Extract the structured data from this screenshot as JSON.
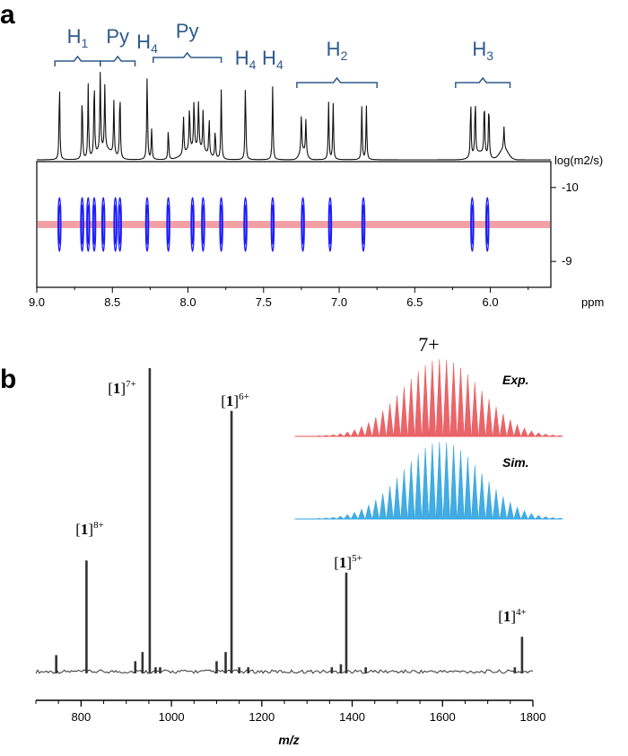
{
  "figure": {
    "panel_a_letter": "a",
    "panel_b_letter": "b"
  },
  "chart_data": [
    {
      "type": "line",
      "panel": "a",
      "subtype": "1H NMR spectrum with DOSY map",
      "x_axis": {
        "range": [
          9.0,
          5.6
        ],
        "ticks": [
          "9.0",
          "8.5",
          "8.0",
          "7.5",
          "7.0",
          "6.5",
          "6.0"
        ],
        "unit": "ppm",
        "reversed": true
      },
      "y_axis": {
        "label": "log(m2/s)",
        "ticks": [
          "-10",
          "-9"
        ]
      },
      "assignments": [
        {
          "name": "H",
          "sub": "1",
          "range": [
            8.88,
            8.58
          ]
        },
        {
          "name": "Py",
          "range": [
            8.58,
            8.35
          ]
        },
        {
          "name": "H",
          "sub": "4",
          "point": 8.27
        },
        {
          "name": "Py",
          "range": [
            8.23,
            7.78
          ]
        },
        {
          "name": "H",
          "sub": "4",
          "point": 7.62
        },
        {
          "name": "H",
          "sub": "4",
          "point": 7.44
        },
        {
          "name": "H",
          "sub": "2",
          "range": [
            7.28,
            6.75
          ]
        },
        {
          "name": "H",
          "sub": "3",
          "range": [
            6.23,
            5.87
          ]
        }
      ],
      "peaks_ppm": [
        {
          "x": 8.85,
          "h": 0.85
        },
        {
          "x": 8.7,
          "h": 0.74
        },
        {
          "x": 8.66,
          "h": 0.83
        },
        {
          "x": 8.62,
          "h": 0.88
        },
        {
          "x": 8.58,
          "h": 0.9
        },
        {
          "x": 8.55,
          "h": 0.72
        },
        {
          "x": 8.49,
          "h": 0.6
        },
        {
          "x": 8.45,
          "h": 0.77
        },
        {
          "x": 8.27,
          "h": 0.97
        },
        {
          "x": 8.24,
          "h": 0.35
        },
        {
          "x": 8.13,
          "h": 0.34
        },
        {
          "x": 8.03,
          "h": 0.44
        },
        {
          "x": 7.99,
          "h": 0.5
        },
        {
          "x": 7.96,
          "h": 0.55
        },
        {
          "x": 7.93,
          "h": 0.54
        },
        {
          "x": 7.9,
          "h": 0.46
        },
        {
          "x": 7.86,
          "h": 0.41
        },
        {
          "x": 7.82,
          "h": 0.32
        },
        {
          "x": 7.78,
          "h": 0.78
        },
        {
          "x": 7.62,
          "h": 0.87
        },
        {
          "x": 7.44,
          "h": 0.82
        },
        {
          "x": 7.25,
          "h": 0.42
        },
        {
          "x": 7.22,
          "h": 0.4
        },
        {
          "x": 7.07,
          "h": 0.65
        },
        {
          "x": 7.04,
          "h": 0.65
        },
        {
          "x": 6.85,
          "h": 0.6
        },
        {
          "x": 6.82,
          "h": 0.6
        },
        {
          "x": 6.13,
          "h": 0.62
        },
        {
          "x": 6.1,
          "h": 0.62
        },
        {
          "x": 6.04,
          "h": 0.62
        },
        {
          "x": 6.01,
          "h": 0.62
        },
        {
          "x": 5.91,
          "h": 0.25
        }
      ],
      "dosy_band_logD": -9.5,
      "dosy_spots_ppm": [
        8.85,
        8.7,
        8.66,
        8.62,
        8.56,
        8.48,
        8.45,
        8.27,
        8.13,
        7.97,
        7.9,
        7.78,
        7.62,
        7.44,
        7.24,
        7.06,
        6.84,
        6.12,
        6.02
      ]
    },
    {
      "type": "line",
      "panel": "b",
      "subtype": "ESI mass spectrum",
      "x_axis": {
        "label": "m/z",
        "range": [
          700,
          1800
        ],
        "ticks": [
          "800",
          "1000",
          "1200",
          "1400",
          "1600",
          "1800"
        ]
      },
      "peaks": [
        {
          "mz": 745,
          "intensity": 0.06
        },
        {
          "mz": 812,
          "intensity": 0.37
        },
        {
          "mz": 920,
          "intensity": 0.04
        },
        {
          "mz": 936,
          "intensity": 0.07
        },
        {
          "mz": 952,
          "intensity": 1.0
        },
        {
          "mz": 965,
          "intensity": 0.02
        },
        {
          "mz": 975,
          "intensity": 0.02
        },
        {
          "mz": 1100,
          "intensity": 0.04
        },
        {
          "mz": 1120,
          "intensity": 0.07
        },
        {
          "mz": 1133,
          "intensity": 0.86
        },
        {
          "mz": 1150,
          "intensity": 0.02
        },
        {
          "mz": 1170,
          "intensity": 0.02
        },
        {
          "mz": 1355,
          "intensity": 0.02
        },
        {
          "mz": 1375,
          "intensity": 0.03
        },
        {
          "mz": 1387,
          "intensity": 0.33
        },
        {
          "mz": 1430,
          "intensity": 0.02
        },
        {
          "mz": 1760,
          "intensity": 0.02
        },
        {
          "mz": 1776,
          "intensity": 0.12
        }
      ],
      "peak_labels": [
        {
          "species": "1",
          "charge": "8+",
          "mz": 812
        },
        {
          "species": "1",
          "charge": "7+",
          "mz": 952
        },
        {
          "species": "1",
          "charge": "6+",
          "mz": 1133
        },
        {
          "species": "1",
          "charge": "5+",
          "mz": 1387
        },
        {
          "species": "1",
          "charge": "4+",
          "mz": 1776
        }
      ],
      "inset": {
        "title": "7+",
        "series": [
          {
            "name": "Exp.",
            "color": "#e8545a"
          },
          {
            "name": "Sim.",
            "color": "#2ea3e0"
          }
        ]
      }
    }
  ]
}
